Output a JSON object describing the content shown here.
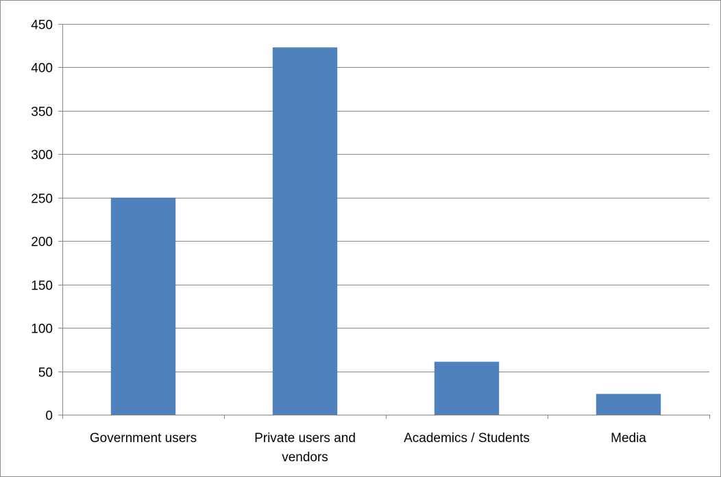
{
  "chart_data": {
    "type": "bar",
    "title": "",
    "xlabel": "",
    "ylabel": "",
    "categories": [
      [
        "Government users"
      ],
      [
        "Private users and",
        "vendors"
      ],
      [
        "Academics / Students"
      ],
      [
        "Media"
      ]
    ],
    "values": [
      250,
      423,
      61,
      24
    ],
    "ylim": [
      0,
      450
    ],
    "yticks": [
      0,
      50,
      100,
      150,
      200,
      250,
      300,
      350,
      400,
      450
    ],
    "grid": true,
    "legend": "none",
    "colors": {
      "bar": "#4f81bd",
      "grid": "#868686",
      "axis": "#868686"
    }
  }
}
